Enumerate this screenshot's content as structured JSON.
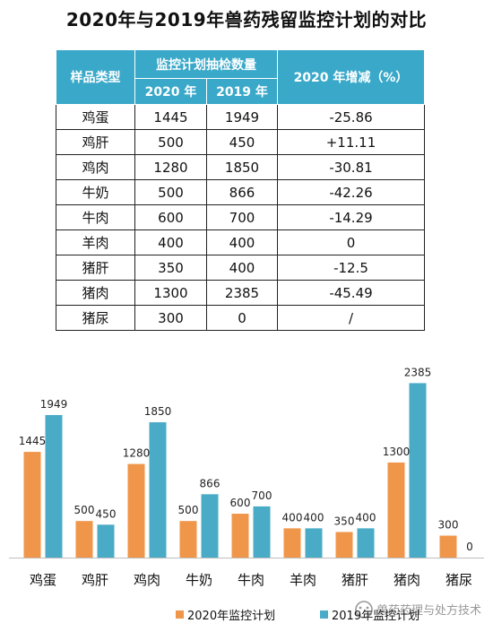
{
  "title": "2020年与2019年兽药残留监控计划的对比",
  "table": {
    "header_type": "样品类型",
    "header_group": "监控计划抽检数量",
    "header_2020": "2020 年",
    "header_2019": "2019 年",
    "header_change": "2020 年增减（%）",
    "rows": [
      {
        "name": "鸡蛋",
        "y2020": "1445",
        "y2019": "1949",
        "change": "-25.86"
      },
      {
        "name": "鸡肝",
        "y2020": "500",
        "y2019": "450",
        "change": "+11.11"
      },
      {
        "name": "鸡肉",
        "y2020": "1280",
        "y2019": "1850",
        "change": "-30.81"
      },
      {
        "name": "牛奶",
        "y2020": "500",
        "y2019": "866",
        "change": "-42.26"
      },
      {
        "name": "牛肉",
        "y2020": "600",
        "y2019": "700",
        "change": "-14.29"
      },
      {
        "name": "羊肉",
        "y2020": "400",
        "y2019": "400",
        "change": "0"
      },
      {
        "name": "猪肝",
        "y2020": "350",
        "y2019": "400",
        "change": "-12.5"
      },
      {
        "name": "猪肉",
        "y2020": "1300",
        "y2019": "2385",
        "change": "-45.49"
      },
      {
        "name": "猪尿",
        "y2020": "300",
        "y2019": "0",
        "change": "/"
      }
    ]
  },
  "chart_data": {
    "type": "bar",
    "categories": [
      "鸡蛋",
      "鸡肝",
      "鸡肉",
      "牛奶",
      "牛肉",
      "羊肉",
      "猪肝",
      "猪肉",
      "猪尿"
    ],
    "series": [
      {
        "name": "2020年监控计划",
        "color": "#f0964a",
        "values": [
          1445,
          500,
          1280,
          500,
          600,
          400,
          350,
          1300,
          300
        ]
      },
      {
        "name": "2019年监控计划",
        "color": "#4aabc6",
        "values": [
          1949,
          450,
          1850,
          866,
          700,
          400,
          400,
          2385,
          0
        ]
      }
    ],
    "ylim": [
      0,
      2385
    ],
    "grid": false,
    "legend": "bottom"
  },
  "watermark": "兽药药理与处方技术"
}
